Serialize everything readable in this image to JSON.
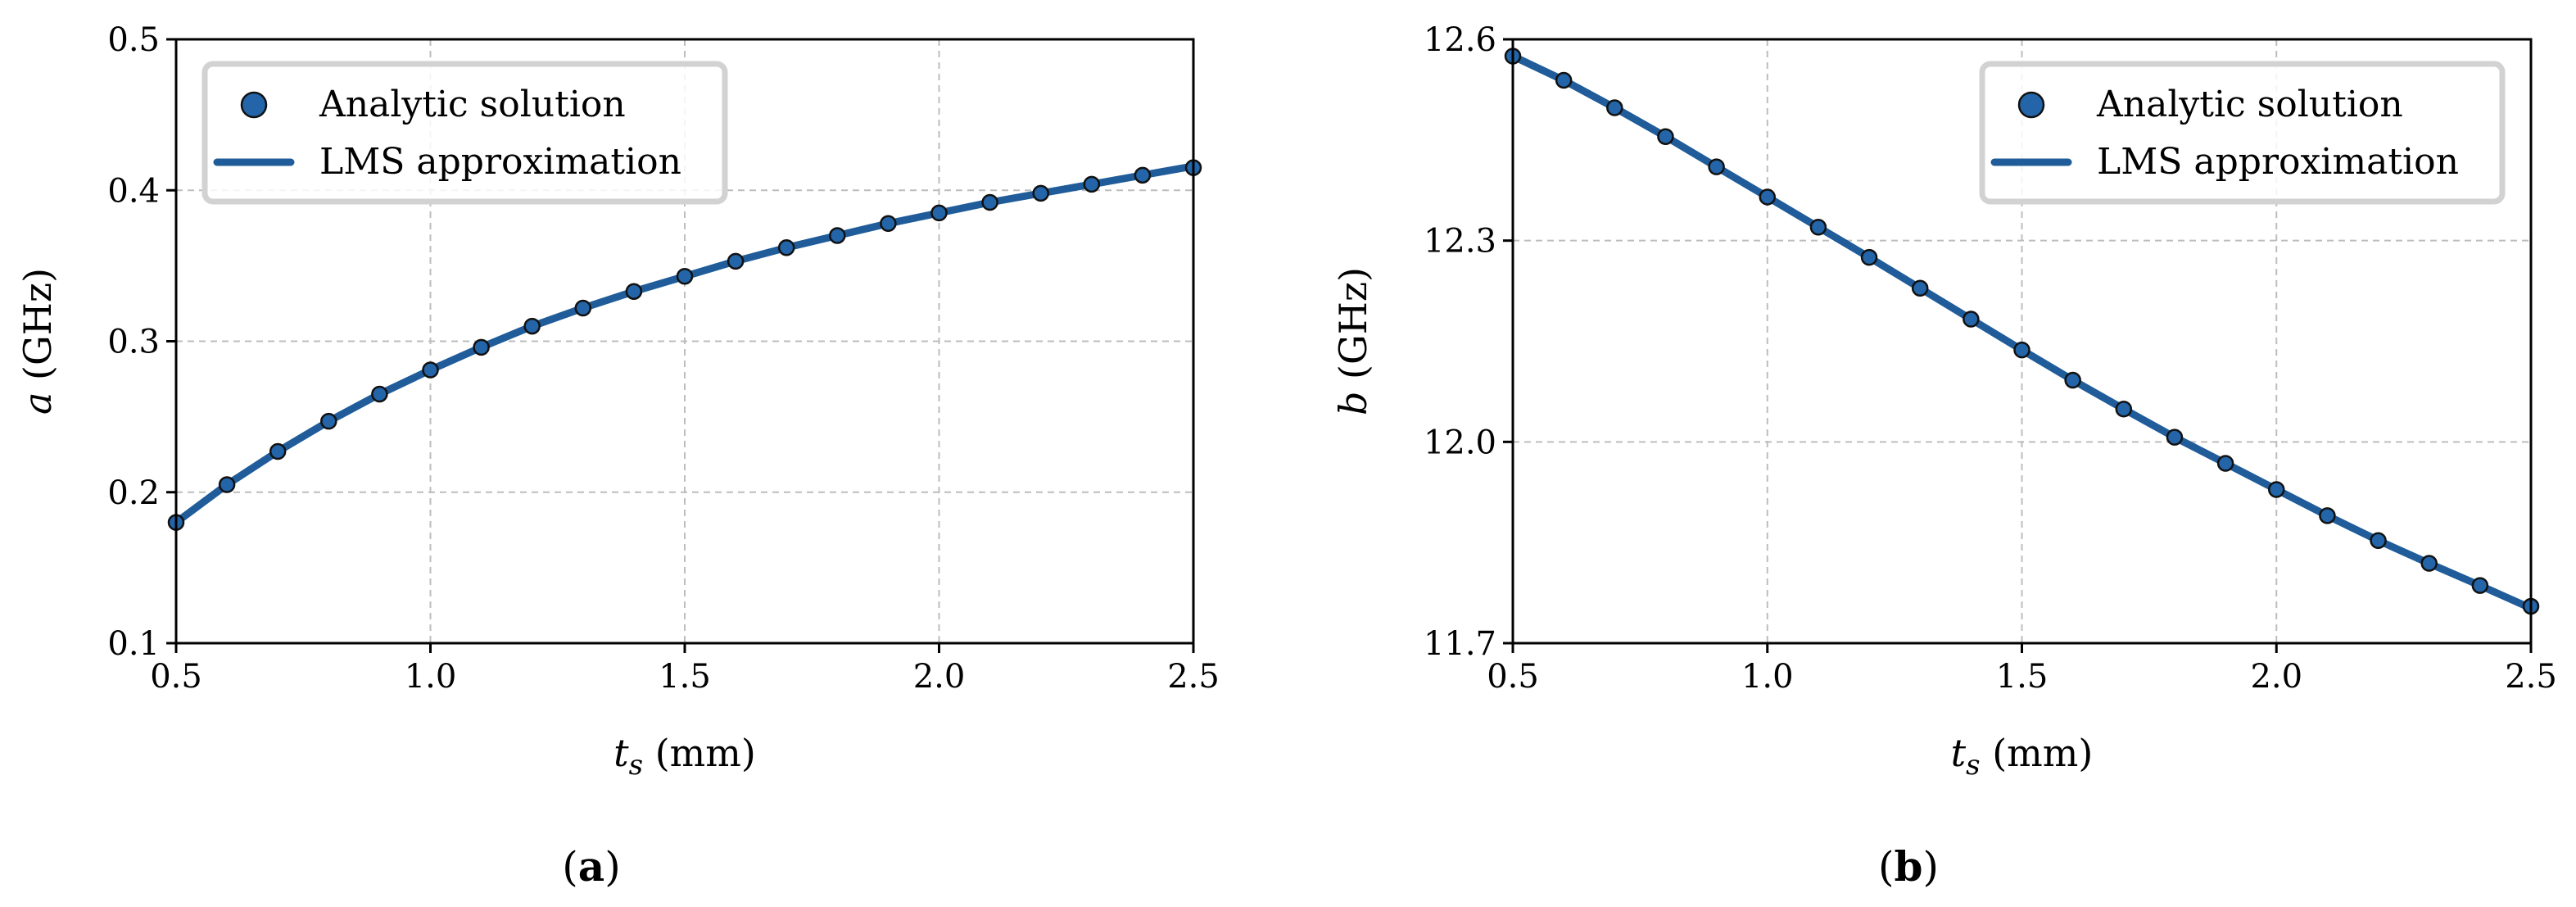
{
  "chart_data": [
    {
      "type": "line",
      "panel_label": "a",
      "xlabel": "t_s (mm)",
      "ylabel": "a (GHz)",
      "xlim": [
        0.5,
        2.5
      ],
      "ylim": [
        0.1,
        0.5
      ],
      "xticks": [
        "0.5",
        "1.0",
        "1.5",
        "2.0",
        "2.5"
      ],
      "yticks": [
        "0.1",
        "0.2",
        "0.3",
        "0.4",
        "0.5"
      ],
      "grid": true,
      "legend_position": "top-left",
      "series": [
        {
          "name": "Analytic solution",
          "style": "markers",
          "x": [
            0.5,
            0.6,
            0.7,
            0.8,
            0.9,
            1.0,
            1.1,
            1.2,
            1.3,
            1.4,
            1.5,
            1.6,
            1.7,
            1.8,
            1.9,
            2.0,
            2.1,
            2.2,
            2.3,
            2.4,
            2.5
          ],
          "y": [
            0.18,
            0.205,
            0.227,
            0.247,
            0.265,
            0.281,
            0.296,
            0.31,
            0.322,
            0.333,
            0.343,
            0.353,
            0.362,
            0.37,
            0.378,
            0.385,
            0.392,
            0.398,
            0.404,
            0.41,
            0.415
          ]
        },
        {
          "name": "LMS approximation",
          "style": "line",
          "x": [
            0.5,
            0.6,
            0.7,
            0.8,
            0.9,
            1.0,
            1.1,
            1.2,
            1.3,
            1.4,
            1.5,
            1.6,
            1.7,
            1.8,
            1.9,
            2.0,
            2.1,
            2.2,
            2.3,
            2.4,
            2.5
          ],
          "y": [
            0.18,
            0.205,
            0.227,
            0.247,
            0.265,
            0.281,
            0.296,
            0.31,
            0.322,
            0.333,
            0.343,
            0.353,
            0.362,
            0.37,
            0.378,
            0.385,
            0.392,
            0.398,
            0.404,
            0.41,
            0.416
          ]
        }
      ]
    },
    {
      "type": "line",
      "panel_label": "b",
      "xlabel": "t_s (mm)",
      "ylabel": "b (GHz)",
      "xlim": [
        0.5,
        2.5
      ],
      "ylim": [
        11.7,
        12.6
      ],
      "xticks": [
        "0.5",
        "1.0",
        "1.5",
        "2.0",
        "2.5"
      ],
      "yticks": [
        "11.7",
        "12.0",
        "12.3",
        "12.6"
      ],
      "grid": true,
      "legend_position": "top-right",
      "series": [
        {
          "name": "Analytic solution",
          "style": "markers",
          "x": [
            0.5,
            0.6,
            0.7,
            0.8,
            0.9,
            1.0,
            1.1,
            1.2,
            1.3,
            1.4,
            1.5,
            1.6,
            1.7,
            1.8,
            1.9,
            2.0,
            2.1,
            2.2,
            2.3,
            2.4,
            2.5
          ],
          "y": [
            12.575,
            12.539,
            12.498,
            12.455,
            12.41,
            12.365,
            12.32,
            12.275,
            12.229,
            12.183,
            12.137,
            12.092,
            12.049,
            12.007,
            11.968,
            11.929,
            11.89,
            11.853,
            11.819,
            11.786,
            11.755
          ]
        },
        {
          "name": "LMS approximation",
          "style": "line",
          "x": [
            0.5,
            0.6,
            0.7,
            0.8,
            0.9,
            1.0,
            1.1,
            1.2,
            1.3,
            1.4,
            1.5,
            1.6,
            1.7,
            1.8,
            1.9,
            2.0,
            2.1,
            2.2,
            2.3,
            2.4,
            2.5
          ],
          "y": [
            12.575,
            12.539,
            12.498,
            12.455,
            12.41,
            12.365,
            12.32,
            12.275,
            12.229,
            12.183,
            12.137,
            12.092,
            12.049,
            12.007,
            11.968,
            11.929,
            11.89,
            11.853,
            11.819,
            11.786,
            11.752
          ]
        }
      ]
    }
  ],
  "captions": [
    "(a)",
    "(b)"
  ],
  "colors": {
    "series": "#1f5c99",
    "marker_fill": "#2365a8",
    "marker_edge": "#111111",
    "grid": "#bdbdbd",
    "legend_edge": "#d2d2d2"
  }
}
